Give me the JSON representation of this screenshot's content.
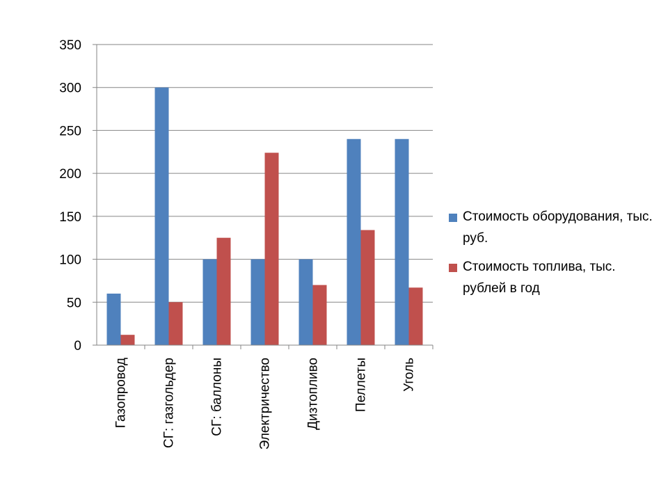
{
  "chart_data": {
    "type": "bar",
    "categories": [
      "Газопровод",
      "СГ: газгольдер",
      "СГ: баллоны",
      "Электричество",
      "Дизтопливо",
      "Пеллеты",
      "Уголь"
    ],
    "series": [
      {
        "name": "Стоимость оборудования, тыс. руб.",
        "color": "#4F81BD",
        "values": [
          60,
          300,
          100,
          100,
          100,
          240,
          240
        ]
      },
      {
        "name": "Стоимость топлива, тыс. рублей в год",
        "color": "#C0504D",
        "values": [
          12,
          50,
          125,
          224,
          70,
          134,
          67
        ]
      }
    ],
    "ylim": [
      0,
      350
    ],
    "yticks": [
      "0",
      "50",
      "100",
      "150",
      "200",
      "250",
      "300",
      "350"
    ],
    "grid": true,
    "legend_position": "right"
  },
  "legend": {
    "items": [
      {
        "label": "Стоимость оборудования, тыс. руб.",
        "color": "#4F81BD"
      },
      {
        "label": "Стоимость топлива, тыс. рублей в год",
        "color": "#C0504D"
      }
    ]
  }
}
